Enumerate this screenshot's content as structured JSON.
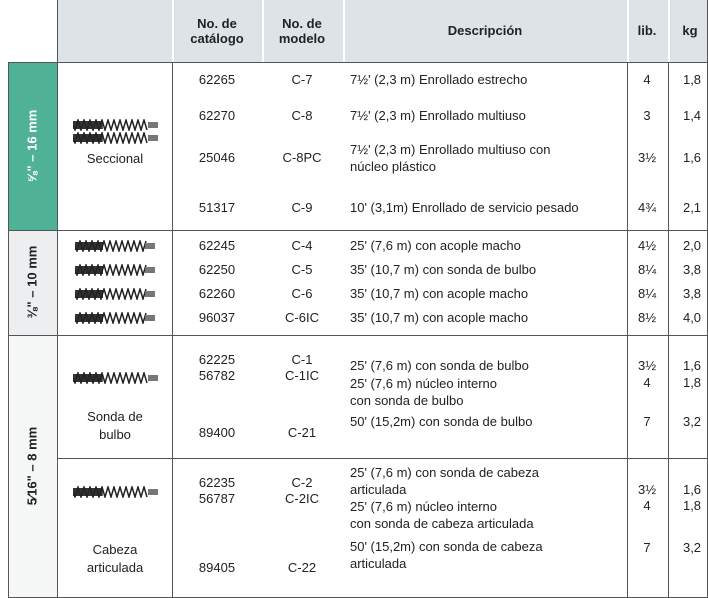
{
  "header": {
    "columns": [
      "No. de catálogo",
      "No. de modelo",
      "Descripción",
      "lib.",
      "kg"
    ]
  },
  "groups": [
    {
      "label": "⅝\" – 16 mm",
      "subgroups": [
        {
          "caption": "Seccional",
          "rows": [
            {
              "catalog": "62265",
              "model": "C-7",
              "description": [
                "7½' (2,3 m) Enrollado estrecho"
              ],
              "lib": "4",
              "kg": "1,8"
            },
            {
              "catalog": "62270",
              "model": "C-8",
              "description": [
                "7½' (2,3 m) Enrollado multiuso"
              ],
              "lib": "3",
              "kg": "1,4"
            },
            {
              "catalog": "25046",
              "model": "C-8PC",
              "description": [
                "7½' (2,3 m) Enrollado multiuso con",
                "núcleo plástico"
              ],
              "lib": "3½",
              "kg": "1,6"
            },
            {
              "catalog": "51317",
              "model": "C-9",
              "description": [
                "10' (3,1m) Enrollado de servicio pesado"
              ],
              "lib": "4¾",
              "kg": "2,1"
            }
          ]
        }
      ]
    },
    {
      "label": "⅜\" – 10 mm",
      "subgroups": [
        {
          "rows": [
            {
              "catalog": "62245",
              "model": "C-4",
              "description": [
                "25' (7,6 m) con acople macho"
              ],
              "lib": "4½",
              "kg": "2,0"
            },
            {
              "catalog": "62250",
              "model": "C-5",
              "description": [
                "35' (10,7 m) con sonda de bulbo"
              ],
              "lib": "8¼",
              "kg": "3,8"
            },
            {
              "catalog": "62260",
              "model": "C-6",
              "description": [
                "35' (10,7 m) con acople macho"
              ],
              "lib": "8¼",
              "kg": "3,8"
            },
            {
              "catalog": "96037",
              "model": "C-6IC",
              "description": [
                "35' (10,7 m) con acople macho"
              ],
              "lib": "8½",
              "kg": "4,0"
            }
          ]
        }
      ]
    },
    {
      "label": "5⁄16\" – 8 mm",
      "subgroups": [
        {
          "caption": "Sonda de bulbo",
          "rows": [
            {
              "catalog": "62225",
              "model": "C-1",
              "description": [
                "25' (7,6 m) con sonda de bulbo"
              ],
              "lib": "3½",
              "kg": "1,6"
            },
            {
              "catalog": "56782",
              "model": "C-1IC",
              "description": [
                "25' (7,6 m) núcleo interno",
                "con sonda de bulbo"
              ],
              "lib": "4",
              "kg": "1,8"
            },
            {
              "catalog": "89400",
              "model": "C-21",
              "description": [
                "50' (15,2m) con sonda de bulbo"
              ],
              "lib": "7",
              "kg": "3,2"
            }
          ]
        },
        {
          "caption": "Cabeza articulada",
          "rows": [
            {
              "catalog": "62235",
              "model": "C-2",
              "description": [
                "25' (7,6 m) con sonda de cabeza",
                "articulada"
              ],
              "lib": "3½",
              "kg": "1,6"
            },
            {
              "catalog": "56787",
              "model": "C-2IC",
              "description": [
                "25' (7,6 m) núcleo interno",
                "con sonda de cabeza articulada"
              ],
              "lib": "4",
              "kg": "1,8"
            },
            {
              "catalog": "89405",
              "model": "C-22",
              "description": [
                "50' (15,2m) con sonda de cabeza",
                "articulada"
              ],
              "lib": "7",
              "kg": "3,2"
            }
          ]
        }
      ]
    }
  ]
}
